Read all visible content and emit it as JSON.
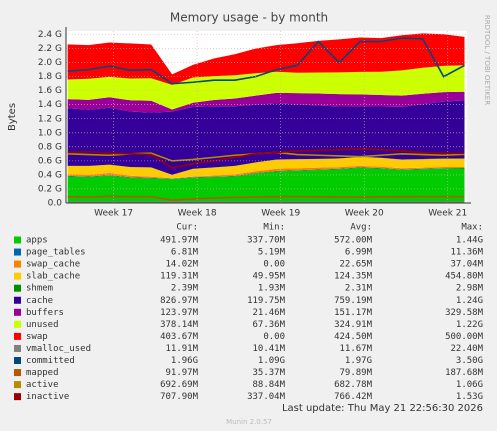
{
  "chart_data": {
    "type": "area",
    "title": "Memory usage - by month",
    "ylabel": "Bytes",
    "side_text": "RRDTOOL / TOBI OETIKER",
    "xlim": [
      16.43,
      21.23
    ],
    "xticks": [
      {
        "value": 17,
        "label": "Week 17"
      },
      {
        "value": 18,
        "label": "Week 18"
      },
      {
        "value": 19,
        "label": "Week 19"
      },
      {
        "value": 20,
        "label": "Week 20"
      },
      {
        "value": 21,
        "label": "Week 21"
      }
    ],
    "ylim": [
      0,
      2450000000
    ],
    "yticks": [
      {
        "value": 0,
        "label": "0.0"
      },
      {
        "value": 200000000,
        "label": "0.2 G"
      },
      {
        "value": 400000000,
        "label": "0.4 G"
      },
      {
        "value": 600000000,
        "label": "0.6 G"
      },
      {
        "value": 800000000,
        "label": "0.8 G"
      },
      {
        "value": 1000000000,
        "label": "1.0 G"
      },
      {
        "value": 1200000000,
        "label": "1.2 G"
      },
      {
        "value": 1400000000,
        "label": "1.4 G"
      },
      {
        "value": 1600000000,
        "label": "1.6 G"
      },
      {
        "value": 1800000000,
        "label": "1.8 G"
      },
      {
        "value": 2000000000,
        "label": "2.0 G"
      },
      {
        "value": 2200000000,
        "label": "2.2 G"
      },
      {
        "value": 2400000000,
        "label": "2.4 G"
      }
    ],
    "grid": true,
    "x": [
      16.45,
      16.7,
      16.95,
      17.2,
      17.45,
      17.7,
      17.95,
      18.2,
      18.45,
      18.7,
      18.95,
      19.2,
      19.45,
      19.7,
      19.95,
      20.2,
      20.45,
      20.7,
      20.95,
      21.2
    ],
    "table_headers": [
      "Cur:",
      "Min:",
      "Avg:",
      "Max:"
    ],
    "series": [
      {
        "name": "apps",
        "color": "#00cc00",
        "style": "area",
        "cur": "491.97M",
        "min": "337.70M",
        "avg": "572.00M",
        "max": "1.44G",
        "values": [
          380000000,
          370000000,
          390000000,
          360000000,
          350000000,
          340000000,
          360000000,
          370000000,
          380000000,
          420000000,
          450000000,
          460000000,
          470000000,
          480000000,
          500000000,
          490000000,
          470000000,
          480000000,
          490000000,
          492000000
        ]
      },
      {
        "name": "page_tables",
        "color": "#0066b3",
        "style": "area",
        "cur": "6.81M",
        "min": "5.19M",
        "avg": "6.99M",
        "max": "11.36M",
        "values": [
          7000000,
          7000000,
          7000000,
          7000000,
          7000000,
          5000000,
          6000000,
          6000000,
          7000000,
          7000000,
          7000000,
          7000000,
          7000000,
          7000000,
          7000000,
          7000000,
          7000000,
          7000000,
          7000000,
          7000000
        ]
      },
      {
        "name": "swap_cache",
        "color": "#ff8000",
        "style": "area",
        "cur": "14.02M",
        "min": "0.00",
        "avg": "22.65M",
        "max": "37.04M",
        "values": [
          20000000,
          25000000,
          30000000,
          22000000,
          18000000,
          5000000,
          10000000,
          15000000,
          20000000,
          25000000,
          30000000,
          28000000,
          26000000,
          24000000,
          22000000,
          20000000,
          18000000,
          16000000,
          15000000,
          14000000
        ]
      },
      {
        "name": "slab_cache",
        "color": "#ffcc00",
        "style": "area",
        "cur": "119.31M",
        "min": "49.95M",
        "avg": "124.35M",
        "max": "454.80M",
        "values": [
          120000000,
          125000000,
          118000000,
          122000000,
          130000000,
          50000000,
          110000000,
          115000000,
          120000000,
          125000000,
          130000000,
          128000000,
          124000000,
          122000000,
          126000000,
          125000000,
          123000000,
          121000000,
          120000000,
          119000000
        ]
      },
      {
        "name": "shmem",
        "color": "#008f00",
        "style": "area",
        "cur": "2.39M",
        "min": "1.93M",
        "avg": "2.31M",
        "max": "2.98M",
        "values": [
          2000000,
          2000000,
          2000000,
          2000000,
          2000000,
          2000000,
          2000000,
          2000000,
          2000000,
          2000000,
          2000000,
          2000000,
          2000000,
          2000000,
          2000000,
          2000000,
          2000000,
          2000000,
          2000000,
          2000000
        ]
      },
      {
        "name": "cache",
        "color": "#330099",
        "style": "area",
        "cur": "826.97M",
        "min": "119.75M",
        "avg": "759.19M",
        "max": "1.24G",
        "values": [
          820000000,
          800000000,
          810000000,
          790000000,
          780000000,
          900000000,
          880000000,
          870000000,
          850000000,
          820000000,
          800000000,
          780000000,
          760000000,
          740000000,
          720000000,
          730000000,
          750000000,
          780000000,
          810000000,
          827000000
        ]
      },
      {
        "name": "buffers",
        "color": "#990099",
        "style": "area",
        "cur": "123.97M",
        "min": "21.46M",
        "avg": "151.17M",
        "max": "329.58M",
        "values": [
          130000000,
          140000000,
          150000000,
          160000000,
          170000000,
          30000000,
          60000000,
          90000000,
          110000000,
          130000000,
          150000000,
          160000000,
          170000000,
          175000000,
          170000000,
          165000000,
          160000000,
          150000000,
          135000000,
          124000000
        ]
      },
      {
        "name": "unused",
        "color": "#ccff00",
        "style": "area",
        "cur": "378.14M",
        "min": "67.36M",
        "avg": "324.91M",
        "max": "1.22G",
        "values": [
          280000000,
          300000000,
          290000000,
          310000000,
          320000000,
          350000000,
          360000000,
          340000000,
          330000000,
          320000000,
          300000000,
          290000000,
          300000000,
          310000000,
          320000000,
          330000000,
          360000000,
          370000000,
          375000000,
          378000000
        ]
      },
      {
        "name": "swap",
        "color": "#ff0000",
        "style": "area",
        "cur": "403.67M",
        "min": "0.00",
        "avg": "424.50M",
        "max": "500.00M",
        "values": [
          500000000,
          480000000,
          490000000,
          500000000,
          480000000,
          150000000,
          180000000,
          250000000,
          300000000,
          350000000,
          380000000,
          420000000,
          450000000,
          470000000,
          490000000,
          480000000,
          500000000,
          490000000,
          450000000,
          404000000
        ]
      },
      {
        "name": "vmalloc_used",
        "color": "#808080",
        "style": "line",
        "cur": "11.91M",
        "min": "10.41M",
        "avg": "11.67M",
        "max": "22.40M",
        "values": [
          12000000,
          12000000,
          12000000,
          12000000,
          12000000,
          11000000,
          11000000,
          12000000,
          12000000,
          12000000,
          12000000,
          12000000,
          12000000,
          12000000,
          12000000,
          12000000,
          12000000,
          12000000,
          12000000,
          12000000
        ]
      },
      {
        "name": "committed",
        "color": "#00487d",
        "style": "line",
        "cur": "1.96G",
        "min": "1.09G",
        "avg": "1.97G",
        "max": "3.50G",
        "values": [
          1880000000,
          1900000000,
          1950000000,
          1890000000,
          1900000000,
          1700000000,
          1720000000,
          1750000000,
          1750000000,
          1800000000,
          1900000000,
          1960000000,
          2300000000,
          2000000000,
          2300000000,
          2300000000,
          2350000000,
          2340000000,
          1800000000,
          1960000000
        ]
      },
      {
        "name": "mapped",
        "color": "#b35a00",
        "style": "line",
        "cur": "91.97M",
        "min": "35.37M",
        "avg": "79.89M",
        "max": "187.68M",
        "values": [
          90000000,
          85000000,
          95000000,
          90000000,
          88000000,
          40000000,
          60000000,
          70000000,
          80000000,
          85000000,
          90000000,
          92000000,
          88000000,
          86000000,
          84000000,
          88000000,
          90000000,
          92000000,
          91000000,
          92000000
        ]
      },
      {
        "name": "active",
        "color": "#b38f00",
        "style": "line",
        "cur": "692.69M",
        "min": "88.84M",
        "avg": "682.78M",
        "max": "1.06G",
        "values": [
          700000000,
          690000000,
          680000000,
          700000000,
          710000000,
          600000000,
          620000000,
          650000000,
          680000000,
          700000000,
          720000000,
          690000000,
          680000000,
          670000000,
          660000000,
          680000000,
          700000000,
          690000000,
          680000000,
          693000000
        ]
      },
      {
        "name": "inactive",
        "color": "#990000",
        "style": "line",
        "cur": "707.90M",
        "min": "337.04M",
        "avg": "766.42M",
        "max": "1.53G",
        "values": [
          720000000,
          730000000,
          710000000,
          700000000,
          690000000,
          500000000,
          560000000,
          600000000,
          650000000,
          700000000,
          720000000,
          740000000,
          750000000,
          760000000,
          770000000,
          760000000,
          740000000,
          720000000,
          710000000,
          708000000
        ]
      }
    ],
    "last_update": "Last update: Thu May 21 22:56:30 2026",
    "credit": "Munin 2.0.57"
  }
}
